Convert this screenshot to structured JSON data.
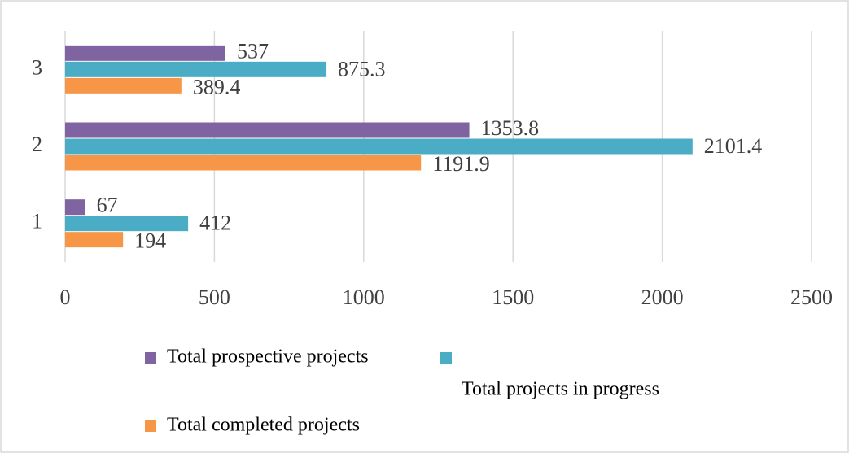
{
  "chart_data": {
    "type": "bar",
    "orientation": "horizontal",
    "categories": [
      "1",
      "2",
      "3"
    ],
    "series": [
      {
        "name": "Total prospective projects",
        "color": "#8064a2",
        "values": [
          67,
          1353.8,
          537
        ]
      },
      {
        "name": "Total projects in progress",
        "color": "#4bacc6",
        "values": [
          412,
          2101.4,
          875.3
        ]
      },
      {
        "name": "Total completed projects",
        "color": "#f79646",
        "values": [
          194,
          1191.9,
          389.4
        ]
      }
    ],
    "xlim": [
      0,
      2500
    ],
    "xticks": [
      0,
      500,
      1000,
      1500,
      2000,
      2500
    ],
    "grid": true,
    "legend": "bottom"
  }
}
